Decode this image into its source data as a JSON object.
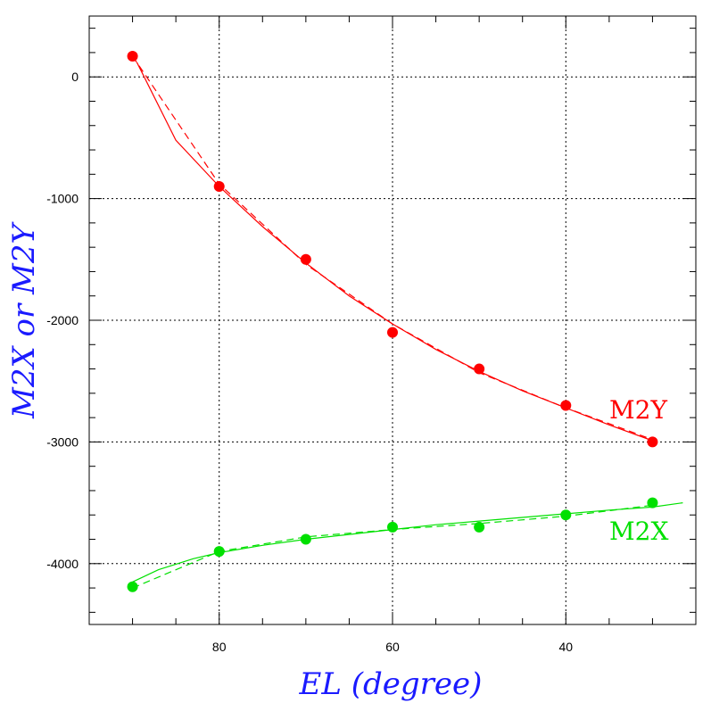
{
  "chart_data": {
    "type": "scatter",
    "title": "",
    "xlabel": "EL (degree)",
    "ylabel": "M2X or M2Y",
    "xlim": [
      95,
      25
    ],
    "ylim": [
      -4500,
      500
    ],
    "x_ticks": [
      80,
      60,
      40
    ],
    "y_ticks": [
      0,
      -1000,
      -2000,
      -3000,
      -4000
    ],
    "x_minor_step": 5,
    "y_minor_step": 200,
    "grid": true,
    "grid_style": "dotted",
    "colors": {
      "axis_title": "#1a1aff",
      "M2Y": "#ff0000",
      "M2X": "#00e000"
    },
    "series": [
      {
        "name": "M2Y",
        "color": "#ff0000",
        "x": [
          90,
          80,
          70,
          60,
          50,
          40,
          30
        ],
        "y": [
          170,
          -900,
          -1500,
          -2100,
          -2400,
          -2700,
          -3000
        ],
        "fit_solid": {
          "x": [
            89.5,
            85,
            80,
            75,
            70,
            65,
            60,
            55,
            50,
            45,
            40,
            35,
            30
          ],
          "y": [
            120,
            -520,
            -900,
            -1230,
            -1530,
            -1800,
            -2030,
            -2240,
            -2420,
            -2580,
            -2720,
            -2860,
            -2990
          ]
        },
        "fit_dashed": {
          "x": [
            90,
            80,
            70,
            60,
            50,
            40,
            30
          ],
          "y": [
            170,
            -880,
            -1540,
            -2030,
            -2430,
            -2720,
            -2980
          ]
        }
      },
      {
        "name": "M2X",
        "color": "#00e000",
        "x": [
          90,
          80,
          70,
          60,
          50,
          40,
          30
        ],
        "y": [
          -4190,
          -3900,
          -3800,
          -3700,
          -3700,
          -3600,
          -3500
        ],
        "fit_solid": {
          "x": [
            90,
            87,
            83,
            80,
            75,
            70,
            65,
            60,
            55,
            50,
            45,
            40,
            35,
            30,
            26.5
          ],
          "y": [
            -4150,
            -4050,
            -3960,
            -3910,
            -3850,
            -3800,
            -3760,
            -3720,
            -3680,
            -3650,
            -3620,
            -3590,
            -3560,
            -3535,
            -3500
          ]
        },
        "fit_dashed": {
          "x": [
            90,
            80,
            70,
            60,
            50,
            40,
            30
          ],
          "y": [
            -4200,
            -3900,
            -3780,
            -3720,
            -3670,
            -3610,
            -3520
          ]
        }
      }
    ],
    "annotations": [
      "M2Y",
      "M2X"
    ]
  }
}
